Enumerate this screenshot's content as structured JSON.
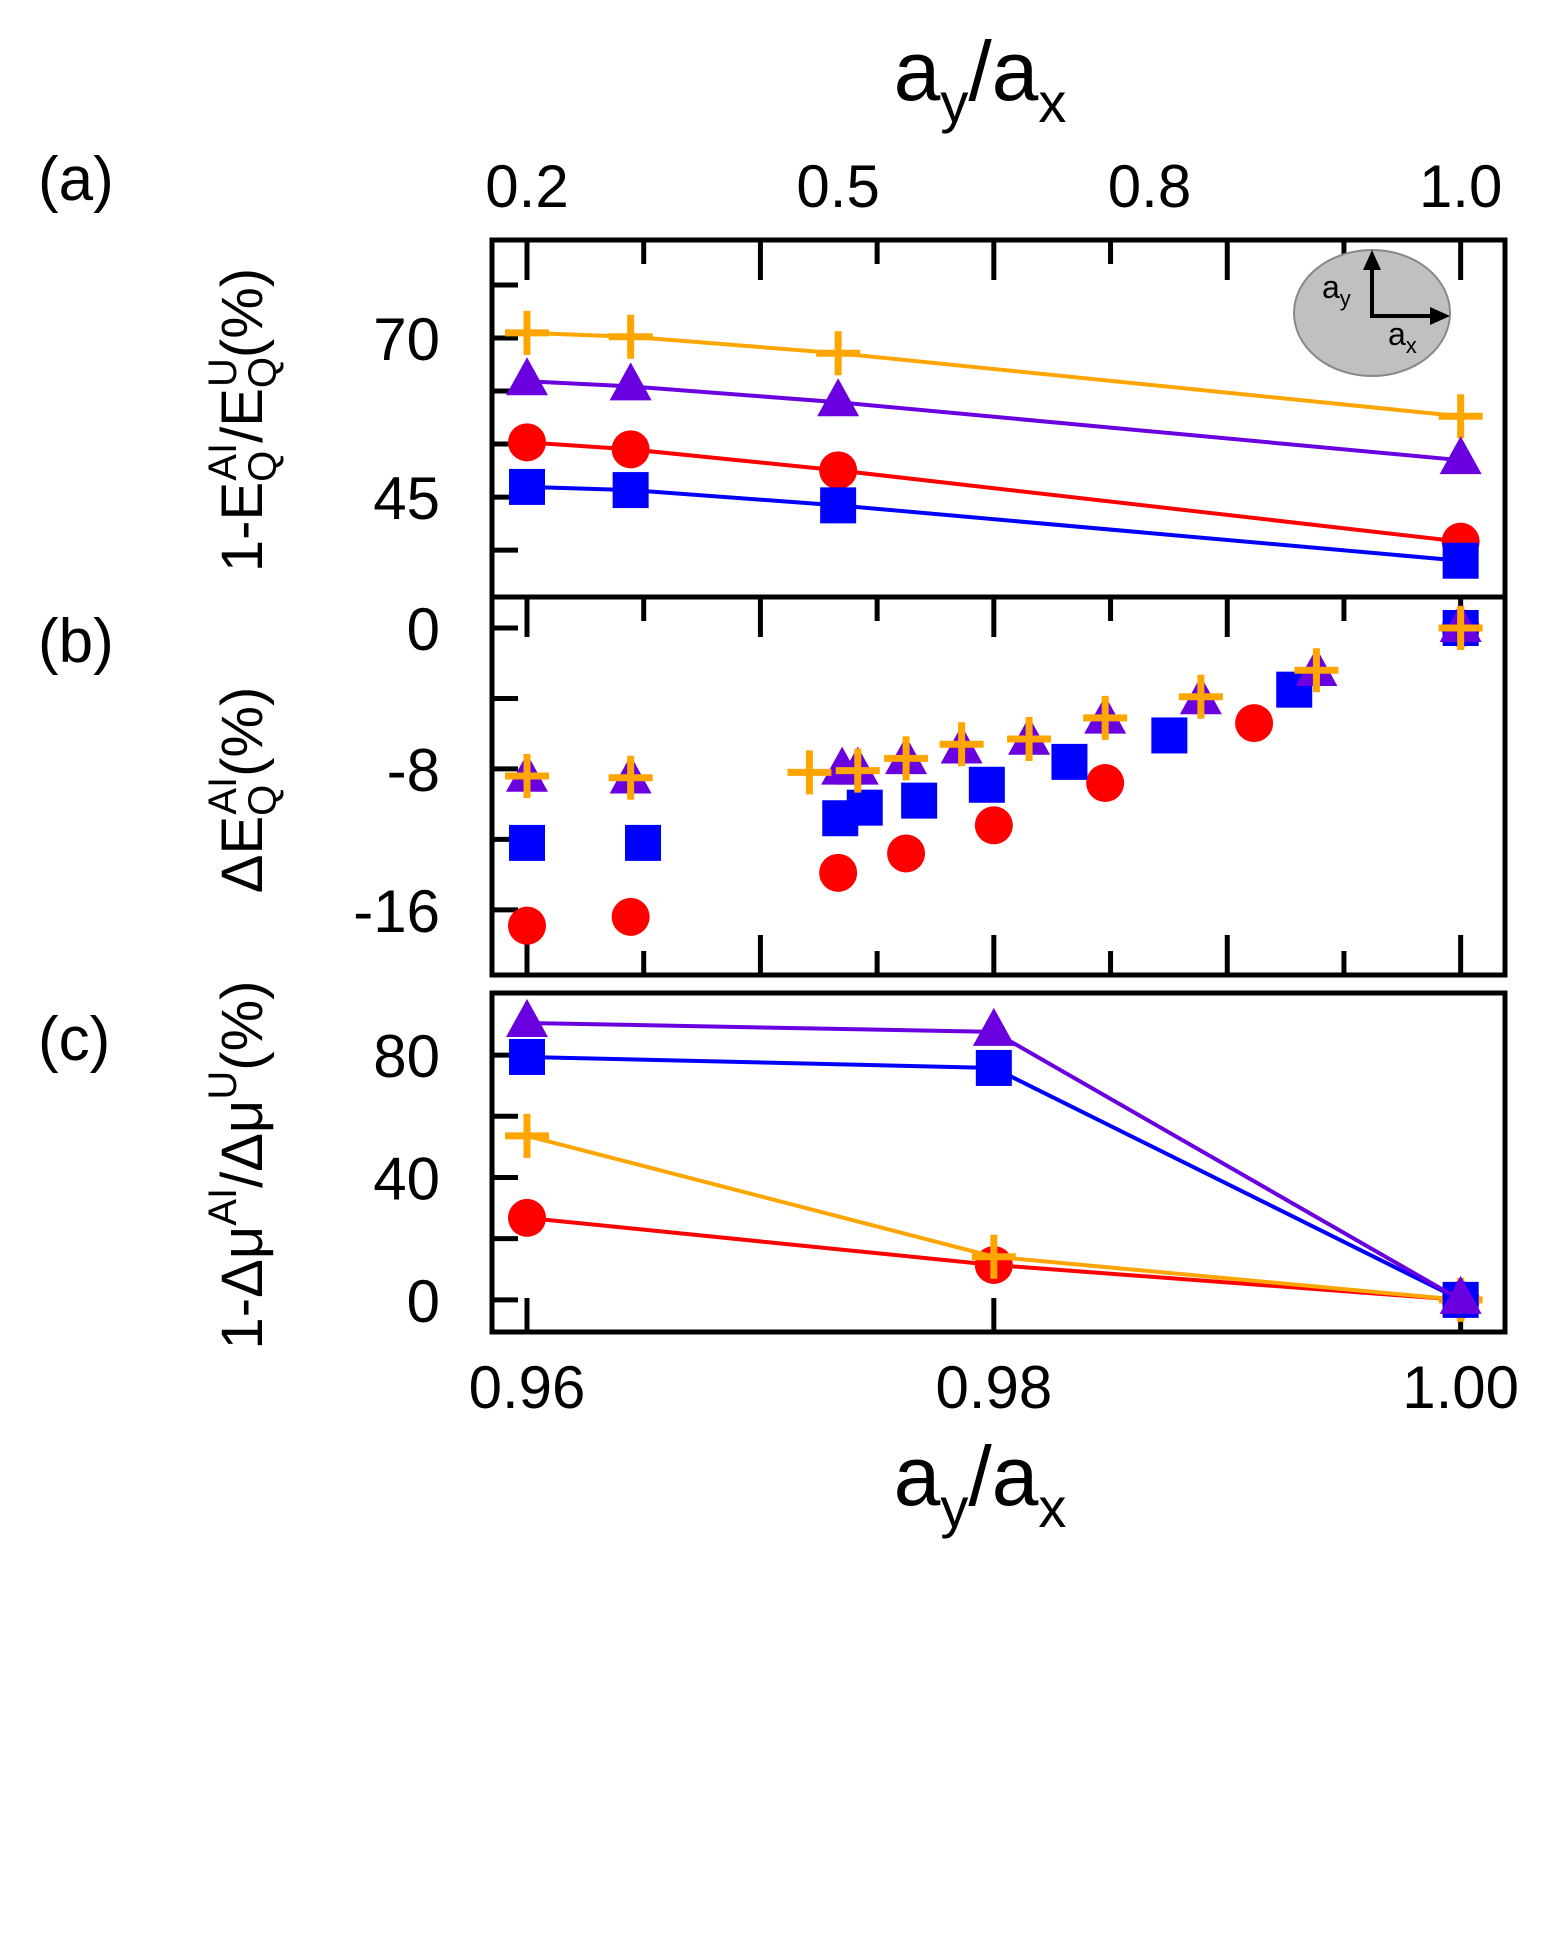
{
  "chart_data": {
    "type": "scatter",
    "x_label": {
      "base1": "a",
      "sub1": "y",
      "slash": "/",
      "base2": "a",
      "sub2": "x"
    },
    "bottom_axis": {
      "ticks": [
        0.96,
        0.98,
        1.0
      ],
      "tick_labels": [
        "0.96",
        "0.98",
        "1.00"
      ],
      "range": [
        0.9585,
        1.0019
      ]
    },
    "top_axis": {
      "ticks": [
        0.96,
        0.97333,
        0.98667,
        1.0
      ],
      "tick_labels": [
        "0.2",
        "0.5",
        "0.8",
        "1.0"
      ]
    },
    "colors": {
      "orange": "#FFA500",
      "purple": "#6A00E0",
      "red": "#FF0000",
      "blue": "#0000FF"
    },
    "panels": [
      {
        "id": "a",
        "label": "(a)",
        "type": "line",
        "y_label": {
          "p1": "1-E",
          "sub1": "Q",
          "sup1": "AI",
          "p2": "/E",
          "sub2": "Q",
          "sup2": "U",
          "p3": "(%)"
        },
        "ylim": [
          29.3,
          85.4
        ],
        "y_ticks": [
          45,
          70
        ],
        "y_tick_labels": [
          "45",
          "70"
        ],
        "inset": {
          "label_y_base": "a",
          "label_y_sub": "y",
          "label_x_base": "a",
          "label_x_sub": "x"
        },
        "series": [
          {
            "name": "orange",
            "marker": "plus",
            "x": [
              0.96,
              0.96444,
              0.97333,
              1.0
            ],
            "y": [
              70.8,
              70.2,
              67.6,
              57.7
            ]
          },
          {
            "name": "purple",
            "marker": "triangle",
            "x": [
              0.96,
              0.96444,
              0.97333,
              1.0
            ],
            "y": [
              63.2,
              62.4,
              59.9,
              50.8
            ]
          },
          {
            "name": "red",
            "marker": "circle",
            "x": [
              0.96,
              0.96444,
              0.97333,
              1.0
            ],
            "y": [
              53.6,
              52.5,
              49.2,
              38.0
            ]
          },
          {
            "name": "blue",
            "marker": "square",
            "x": [
              0.96,
              0.96444,
              0.97333,
              1.0
            ],
            "y": [
              46.6,
              46.1,
              43.7,
              35.0
            ]
          }
        ]
      },
      {
        "id": "b",
        "label": "(b)",
        "type": "scatter",
        "y_label": {
          "p1": "ΔE",
          "sub1": "Q",
          "sup1": "AI",
          "p3": "(%)"
        },
        "ylim": [
          -19.7,
          1.76
        ],
        "y_ticks": [
          -16,
          -8,
          0
        ],
        "y_tick_labels": [
          "-16",
          "-8",
          "0"
        ],
        "series": [
          {
            "name": "red",
            "marker": "circle",
            "x": [
              0.96,
              0.96444,
              0.97333,
              0.97624,
              0.98,
              0.98477,
              0.99115,
              1.0
            ],
            "y": [
              -16.9,
              -16.4,
              -13.9,
              -12.8,
              -11.2,
              -8.8,
              -5.4,
              0
            ]
          },
          {
            "name": "blue",
            "marker": "square",
            "x": [
              0.96,
              0.96497,
              0.97342,
              0.97447,
              0.9768,
              0.9797,
              0.98324,
              0.98752,
              0.99287,
              1.0
            ],
            "y": [
              -12.2,
              -12.2,
              -10.8,
              -10.2,
              -9.8,
              -8.9,
              -7.6,
              -6.1,
              -3.5,
              0
            ]
          },
          {
            "name": "purple",
            "marker": "triangle",
            "x": [
              0.96,
              0.96444,
              0.9735,
              0.97417,
              0.97624,
              0.97862,
              0.98151,
              0.98477,
              0.98887,
              0.99382,
              1.0
            ],
            "y": [
              -8.5,
              -8.6,
              -8.1,
              -8.1,
              -7.5,
              -6.9,
              -6.4,
              -5.2,
              -4.1,
              -2.5,
              0
            ]
          },
          {
            "name": "orange",
            "marker": "plus",
            "x": [
              0.96,
              0.96444,
              0.9721,
              0.97417,
              0.97624,
              0.97862,
              0.98151,
              0.98477,
              0.98887,
              0.99382,
              1.0
            ],
            "y": [
              -8.4,
              -8.5,
              -8.2,
              -8.1,
              -7.4,
              -6.6,
              -6.3,
              -5.1,
              -3.9,
              -2.4,
              0
            ]
          }
        ]
      },
      {
        "id": "c",
        "label": "(c)",
        "type": "line",
        "y_label": {
          "p1": "1-Δμ",
          "sup1": "AI",
          "p2": "/Δμ",
          "sup2": "U",
          "p3": "(%)"
        },
        "ylim": [
          -10.5,
          100.3
        ],
        "y_ticks": [
          0,
          40,
          80
        ],
        "y_tick_labels": [
          "0",
          "40",
          "80"
        ],
        "series": [
          {
            "name": "red",
            "marker": "circle",
            "x": [
              0.96,
              0.98,
              1.0
            ],
            "y": [
              26.8,
              11.4,
              0
            ]
          },
          {
            "name": "orange",
            "marker": "plus",
            "x": [
              0.96,
              0.98,
              1.0
            ],
            "y": [
              53.6,
              14.1,
              0
            ]
          },
          {
            "name": "blue",
            "marker": "square",
            "x": [
              0.96,
              0.98,
              1.0
            ],
            "y": [
              79.4,
              75.8,
              0
            ]
          },
          {
            "name": "purple",
            "marker": "triangle",
            "x": [
              0.96,
              0.98,
              1.0
            ],
            "y": [
              90.5,
              87.6,
              0
            ]
          }
        ]
      }
    ]
  }
}
